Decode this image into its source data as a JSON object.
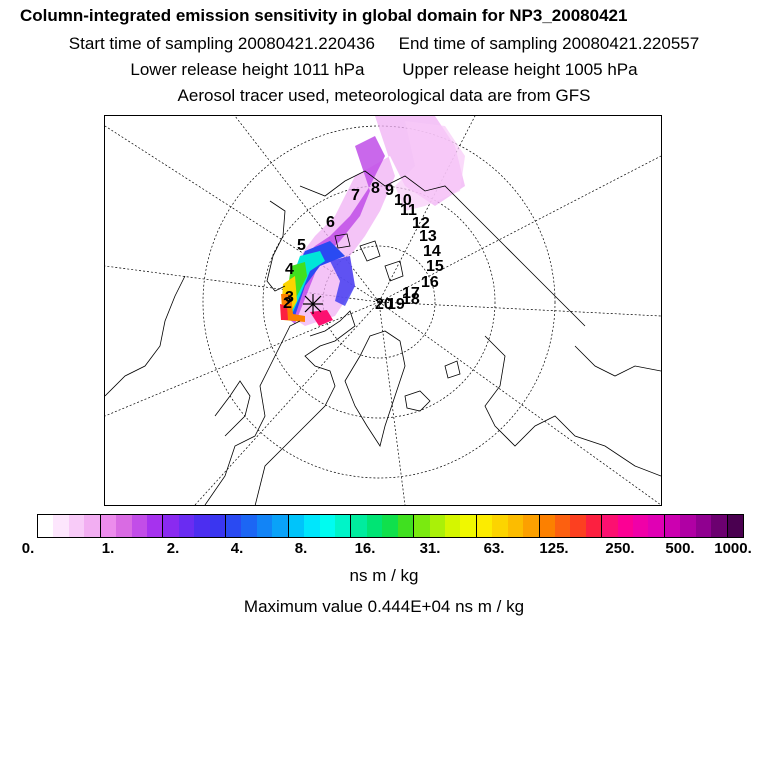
{
  "header": {
    "title": "Column-integrated emission sensitivity in global domain for NP3_20080421",
    "start": "Start time of sampling 20080421.220436",
    "end": "End time of sampling 20080421.220557",
    "lower": "Lower release height 1011 hPa",
    "upper": "Upper release height 1005 hPa",
    "tracer": "Aerosol tracer used, meteorological data are from GFS"
  },
  "map": {
    "projection": "north-polar-stereographic",
    "day_labels": [
      "2",
      "3",
      "4",
      "5",
      "6",
      "7",
      "8",
      "9",
      "10",
      "11",
      "12",
      "13",
      "14",
      "15",
      "16",
      "17",
      "18",
      "19",
      "20"
    ]
  },
  "colorbar": {
    "colors": [
      "#ffffff",
      "#fde6fd",
      "#f8cbf8",
      "#f2aef2",
      "#ec8cec",
      "#d96be3",
      "#c24de8",
      "#a632ee",
      "#8a2af0",
      "#6a2cf2",
      "#4c2ef0",
      "#3a36f0",
      "#2a4af2",
      "#1c66f4",
      "#1284f6",
      "#0aa2f8",
      "#00c4fa",
      "#00e6fc",
      "#00fcf0",
      "#00f4c8",
      "#00ec9e",
      "#00e474",
      "#10e04c",
      "#40e020",
      "#7aea10",
      "#aaf008",
      "#d4f600",
      "#f0f800",
      "#fcec00",
      "#fcd400",
      "#fcbc00",
      "#fca000",
      "#fc8000",
      "#fc6010",
      "#fc4020",
      "#fc2040",
      "#fc1070",
      "#fc0094",
      "#f000a8",
      "#e000b4",
      "#cc00b0",
      "#b000a4",
      "#900090",
      "#6c0070",
      "#4a0050"
    ],
    "tick_labels": [
      "0.",
      "1.",
      "2.",
      "4.",
      "8.",
      "16.",
      "31.",
      "63.",
      "125.",
      "250.",
      "500.",
      "1000."
    ],
    "units": "ns m / kg"
  },
  "max_value": "Maximum value  0.444E+04 ns m / kg"
}
